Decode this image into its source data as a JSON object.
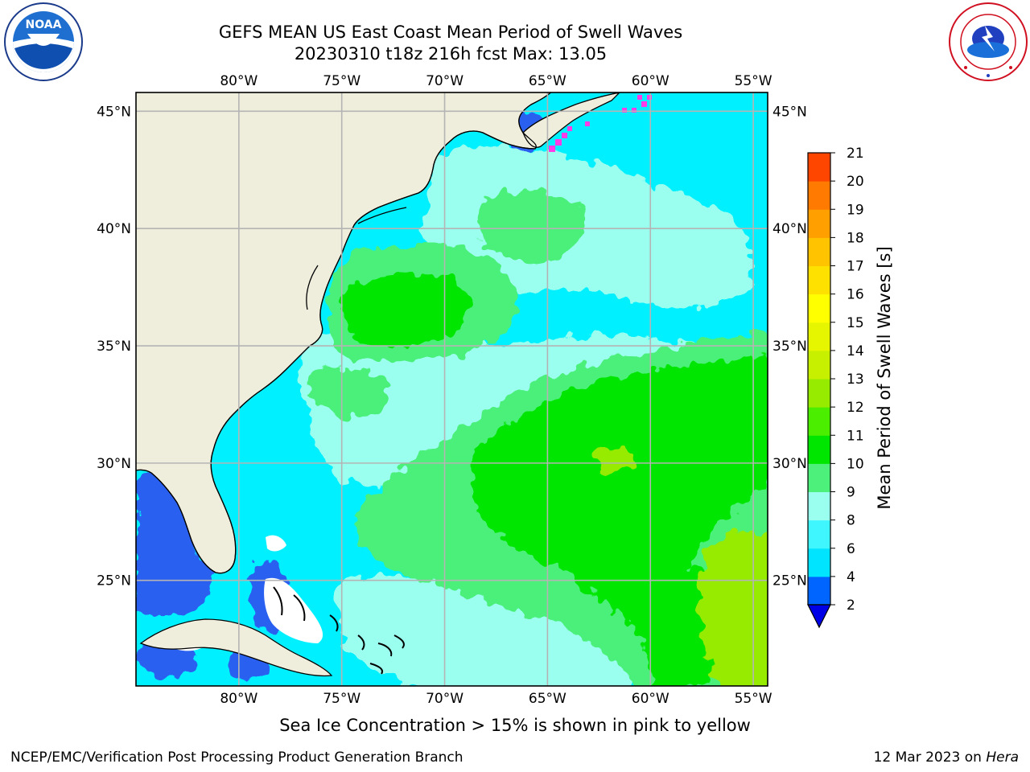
{
  "header": {
    "title_line1": "GEFS MEAN US East Coast Mean Period of Swell Waves",
    "title_line2": "20230310 t18z 216h fcst   Max: 13.05"
  },
  "logos": {
    "left": "NOAA",
    "left_ring": "NATIONAL OCEANIC AND ATMOSPHERIC ADMINISTRATION · U.S. DEPARTMENT OF COMMERCE",
    "right_ring": "NATIONAL WEATHER SERVICE"
  },
  "map": {
    "lon_labels": [
      "80°W",
      "75°W",
      "70°W",
      "65°W",
      "60°W",
      "55°W"
    ],
    "lat_labels": [
      "45°N",
      "40°N",
      "35°N",
      "30°N",
      "25°N"
    ],
    "lon_values": [
      -80,
      -75,
      -70,
      -65,
      -60,
      -55
    ],
    "lat_values": [
      45,
      40,
      35,
      30,
      25
    ],
    "extent": {
      "lon_min": -85,
      "lon_max": -54.3,
      "lat_min": 20.5,
      "lat_max": 45.8
    },
    "colors": {
      "land": "#efeedd",
      "ocean_low": "#00f0ff",
      "ocean_mid": "#9bfff0",
      "green_light": "#4cf07a",
      "green": "#00e600",
      "green_yellow": "#96eb00",
      "blue": "#2a60f0",
      "ice": "#ff3ce6",
      "grid": "#b4b4b4"
    }
  },
  "colorbar": {
    "label": "Mean Period of Swell Waves [s]",
    "ticks": [
      "2",
      "4",
      "6",
      "8",
      "9",
      "10",
      "11",
      "12",
      "13",
      "14",
      "15",
      "16",
      "17",
      "18",
      "19",
      "20",
      "21"
    ],
    "colors": [
      "#0064ff",
      "#00e4ff",
      "#3ff6ff",
      "#9bfff0",
      "#4cf07a",
      "#00e600",
      "#4cee00",
      "#96eb00",
      "#c7f000",
      "#e6f500",
      "#ffff00",
      "#ffe100",
      "#ffc300",
      "#ff9f00",
      "#ff7a00",
      "#ff4600",
      "#ff0000"
    ],
    "under_color": "#0000e6"
  },
  "footer": {
    "subtitle": "Sea Ice Concentration > 15% is shown in pink to yellow",
    "left": "NCEP/EMC/Verification Post Processing Product Generation Branch",
    "right_date": "12 Mar 2023 on ",
    "right_host": "Hera"
  }
}
